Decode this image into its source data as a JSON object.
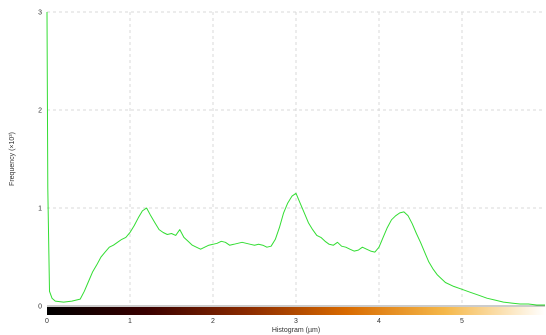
{
  "chart_data": {
    "type": "line",
    "title": "",
    "xlabel": "Histogram (µm)",
    "ylabel": "Frequency (×10³)",
    "xlim": [
      0,
      6
    ],
    "ylim": [
      0,
      3
    ],
    "x_ticks": [
      "0",
      "1",
      "2",
      "3",
      "4",
      "5"
    ],
    "y_ticks": [
      "0",
      "1",
      "2",
      "3"
    ],
    "grid": true,
    "legend": "none",
    "colorbar": "black-red-orange-yellow-white gradient along x axis",
    "series": [
      {
        "color": "#33dd33",
        "x": [
          0.0,
          0.01,
          0.03,
          0.06,
          0.1,
          0.2,
          0.3,
          0.4,
          0.45,
          0.5,
          0.55,
          0.6,
          0.65,
          0.7,
          0.75,
          0.8,
          0.85,
          0.9,
          0.95,
          1.0,
          1.05,
          1.1,
          1.15,
          1.2,
          1.25,
          1.3,
          1.35,
          1.4,
          1.45,
          1.5,
          1.55,
          1.6,
          1.65,
          1.7,
          1.75,
          1.8,
          1.85,
          1.9,
          1.95,
          2.0,
          2.05,
          2.1,
          2.15,
          2.2,
          2.25,
          2.3,
          2.35,
          2.4,
          2.45,
          2.5,
          2.55,
          2.6,
          2.65,
          2.7,
          2.75,
          2.8,
          2.85,
          2.9,
          2.95,
          3.0,
          3.05,
          3.1,
          3.15,
          3.2,
          3.25,
          3.3,
          3.35,
          3.4,
          3.45,
          3.5,
          3.55,
          3.6,
          3.65,
          3.7,
          3.75,
          3.8,
          3.85,
          3.9,
          3.95,
          4.0,
          4.05,
          4.1,
          4.15,
          4.2,
          4.25,
          4.3,
          4.35,
          4.4,
          4.45,
          4.5,
          4.55,
          4.6,
          4.65,
          4.7,
          4.75,
          4.8,
          4.9,
          5.0,
          5.1,
          5.2,
          5.3,
          5.4,
          5.5,
          5.6,
          5.7,
          5.8,
          5.9,
          6.0
        ],
        "y": [
          3.0,
          1.2,
          0.15,
          0.08,
          0.05,
          0.04,
          0.05,
          0.07,
          0.15,
          0.25,
          0.35,
          0.42,
          0.5,
          0.55,
          0.6,
          0.62,
          0.65,
          0.68,
          0.7,
          0.75,
          0.82,
          0.9,
          0.97,
          1.0,
          0.92,
          0.85,
          0.78,
          0.75,
          0.73,
          0.74,
          0.72,
          0.78,
          0.7,
          0.66,
          0.62,
          0.6,
          0.58,
          0.6,
          0.62,
          0.63,
          0.64,
          0.66,
          0.65,
          0.62,
          0.63,
          0.64,
          0.65,
          0.64,
          0.63,
          0.62,
          0.63,
          0.62,
          0.6,
          0.61,
          0.68,
          0.8,
          0.95,
          1.05,
          1.12,
          1.15,
          1.05,
          0.95,
          0.85,
          0.78,
          0.72,
          0.7,
          0.66,
          0.63,
          0.62,
          0.65,
          0.61,
          0.6,
          0.58,
          0.56,
          0.57,
          0.6,
          0.58,
          0.56,
          0.55,
          0.6,
          0.7,
          0.8,
          0.88,
          0.92,
          0.95,
          0.96,
          0.92,
          0.84,
          0.74,
          0.65,
          0.55,
          0.45,
          0.38,
          0.32,
          0.28,
          0.24,
          0.2,
          0.17,
          0.14,
          0.11,
          0.08,
          0.06,
          0.04,
          0.03,
          0.02,
          0.02,
          0.01,
          0.01
        ]
      }
    ]
  }
}
